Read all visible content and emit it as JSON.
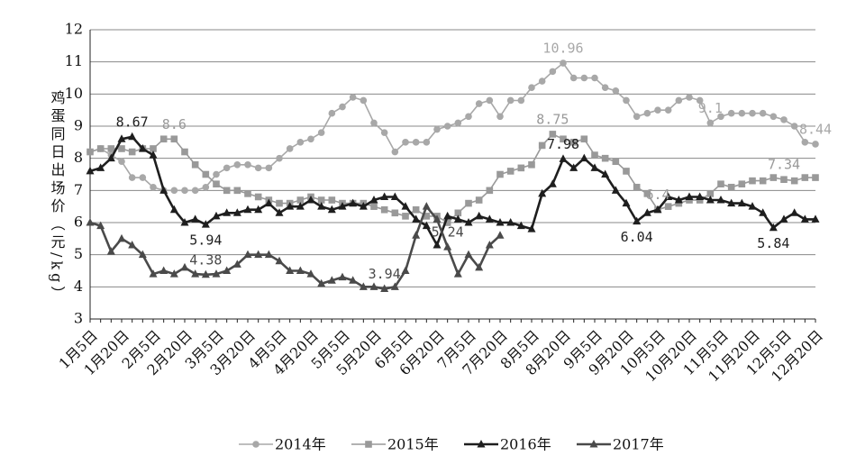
{
  "chart_data": {
    "type": "line",
    "y_label": "鸡蛋同日出场价（元/kg）",
    "categories": [
      "1月5日",
      null,
      null,
      "1月20日",
      null,
      null,
      "2月5日",
      null,
      null,
      "2月20日",
      null,
      null,
      "3月5日",
      null,
      null,
      "3月20日",
      null,
      null,
      "4月5日",
      null,
      null,
      "4月20日",
      null,
      null,
      "5月5日",
      null,
      null,
      "5月20日",
      null,
      null,
      "6月5日",
      null,
      null,
      "6月20日",
      null,
      null,
      "7月5日",
      null,
      null,
      "7月20日",
      null,
      null,
      "8月5日",
      null,
      null,
      "8月20日",
      null,
      null,
      "9月5日",
      null,
      null,
      "9月20日",
      null,
      null,
      "10月5日",
      null,
      null,
      "10月20日",
      null,
      null,
      "11月5日",
      null,
      null,
      "11月20日",
      null,
      null,
      "12月5日",
      null,
      null,
      "12月20日"
    ],
    "series": [
      {
        "name": "2014年",
        "color": "#a8a8a8",
        "marker": "circle",
        "values": [
          8.2,
          8.3,
          8.1,
          7.9,
          7.4,
          7.4,
          7.1,
          7.0,
          7.0,
          7.0,
          7.0,
          7.1,
          7.5,
          7.7,
          7.8,
          7.8,
          7.7,
          7.7,
          8.0,
          8.3,
          8.5,
          8.6,
          8.8,
          9.4,
          9.6,
          9.9,
          9.8,
          9.1,
          8.8,
          8.2,
          8.5,
          8.5,
          8.5,
          8.9,
          9.0,
          9.1,
          9.3,
          9.7,
          9.8,
          9.3,
          9.8,
          9.8,
          10.2,
          10.4,
          10.7,
          10.96,
          10.5,
          10.5,
          10.5,
          10.2,
          10.1,
          9.8,
          9.3,
          9.4,
          9.5,
          9.5,
          9.8,
          9.9,
          9.8,
          9.1,
          9.3,
          9.4,
          9.4,
          9.4,
          9.4,
          9.3,
          9.2,
          9.0,
          8.5,
          8.44
        ],
        "value_labels": [
          null,
          null,
          null,
          null,
          null,
          null,
          null,
          null,
          null,
          null,
          null,
          null,
          null,
          null,
          null,
          null,
          null,
          null,
          null,
          null,
          null,
          null,
          null,
          null,
          null,
          null,
          null,
          null,
          null,
          null,
          null,
          null,
          null,
          null,
          null,
          null,
          null,
          null,
          null,
          null,
          null,
          null,
          null,
          null,
          null,
          "10.96",
          null,
          null,
          null,
          null,
          null,
          null,
          null,
          null,
          null,
          null,
          null,
          null,
          null,
          "9.1",
          null,
          null,
          null,
          null,
          null,
          null,
          null,
          null,
          null,
          "8.44"
        ]
      },
      {
        "name": "2015年",
        "color": "#999999",
        "marker": "square",
        "values": [
          8.2,
          8.3,
          8.3,
          8.3,
          8.2,
          8.3,
          8.3,
          8.6,
          8.6,
          8.2,
          7.8,
          7.5,
          7.2,
          7.0,
          7.0,
          6.9,
          6.8,
          6.7,
          6.6,
          6.6,
          6.7,
          6.8,
          6.7,
          6.7,
          6.6,
          6.6,
          6.6,
          6.5,
          6.4,
          6.3,
          6.2,
          6.4,
          6.2,
          6.2,
          6.0,
          6.3,
          6.6,
          6.7,
          7.0,
          7.5,
          7.6,
          7.7,
          7.8,
          8.4,
          8.75,
          8.6,
          8.5,
          8.6,
          8.1,
          8.0,
          7.9,
          7.6,
          7.1,
          6.9,
          6.4,
          6.5,
          6.6,
          6.7,
          6.7,
          6.9,
          7.2,
          7.1,
          7.2,
          7.3,
          7.3,
          7.4,
          7.34,
          7.3,
          7.4,
          7.4
        ],
        "value_labels": [
          null,
          null,
          null,
          null,
          null,
          null,
          null,
          null,
          "8.6",
          null,
          null,
          null,
          null,
          null,
          null,
          null,
          null,
          null,
          null,
          null,
          null,
          null,
          null,
          null,
          null,
          null,
          null,
          null,
          null,
          null,
          null,
          null,
          null,
          null,
          null,
          null,
          null,
          null,
          null,
          null,
          null,
          null,
          null,
          null,
          "8.75",
          null,
          null,
          null,
          null,
          null,
          null,
          null,
          null,
          null,
          "6.4",
          null,
          null,
          null,
          null,
          null,
          null,
          null,
          null,
          null,
          null,
          null,
          "7.34",
          null,
          null,
          null
        ]
      },
      {
        "name": "2016年",
        "color": "#1e1e1e",
        "marker": "triangle",
        "values": [
          7.6,
          7.7,
          8.0,
          8.6,
          8.67,
          8.3,
          8.1,
          7.0,
          6.4,
          6.0,
          6.1,
          5.94,
          6.2,
          6.3,
          6.3,
          6.4,
          6.4,
          6.6,
          6.3,
          6.5,
          6.5,
          6.7,
          6.5,
          6.4,
          6.5,
          6.6,
          6.5,
          6.7,
          6.8,
          6.8,
          6.5,
          6.1,
          5.9,
          5.3,
          6.2,
          6.1,
          6.0,
          6.2,
          6.1,
          6.0,
          6.0,
          5.9,
          5.8,
          6.9,
          7.2,
          7.98,
          7.7,
          8.0,
          7.7,
          7.5,
          7.0,
          6.6,
          6.04,
          6.3,
          6.4,
          6.8,
          6.7,
          6.8,
          6.8,
          6.7,
          6.7,
          6.6,
          6.6,
          6.5,
          6.3,
          5.84,
          6.1,
          6.3,
          6.1,
          6.1
        ],
        "value_labels": [
          null,
          null,
          null,
          null,
          "8.67",
          null,
          null,
          null,
          null,
          null,
          null,
          "5.94",
          null,
          null,
          null,
          null,
          null,
          null,
          null,
          null,
          null,
          null,
          null,
          null,
          null,
          null,
          null,
          null,
          null,
          null,
          null,
          null,
          null,
          null,
          null,
          null,
          null,
          null,
          null,
          null,
          null,
          null,
          null,
          null,
          null,
          "7.98",
          null,
          null,
          null,
          null,
          null,
          null,
          "6.04",
          null,
          null,
          null,
          null,
          null,
          null,
          null,
          null,
          null,
          null,
          null,
          null,
          "5.84",
          null,
          null,
          null,
          null
        ]
      },
      {
        "name": "2017年",
        "color": "#4a4a4a",
        "marker": "triangle",
        "values": [
          6.0,
          5.9,
          5.1,
          5.5,
          5.3,
          5.0,
          4.4,
          4.5,
          4.4,
          4.6,
          4.4,
          4.38,
          4.4,
          4.5,
          4.7,
          5.0,
          5.0,
          5.0,
          4.8,
          4.5,
          4.5,
          4.4,
          4.1,
          4.2,
          4.3,
          4.2,
          4.0,
          4.0,
          3.94,
          4.0,
          4.5,
          5.6,
          6.5,
          6.1,
          5.24,
          4.4,
          5.0,
          4.6,
          5.3,
          5.6,
          null,
          null,
          null,
          null,
          null,
          null,
          null,
          null,
          null,
          null,
          null,
          null,
          null,
          null,
          null,
          null,
          null,
          null,
          null,
          null,
          null,
          null,
          null,
          null,
          null,
          null,
          null,
          null,
          null,
          null
        ],
        "value_labels": [
          null,
          null,
          null,
          null,
          null,
          null,
          null,
          null,
          null,
          null,
          null,
          "4.38",
          null,
          null,
          null,
          null,
          null,
          null,
          null,
          null,
          null,
          null,
          null,
          null,
          null,
          null,
          null,
          null,
          "3.94",
          null,
          null,
          null,
          null,
          null,
          "5.24",
          null,
          null,
          null,
          null,
          null,
          null,
          null,
          null,
          null,
          null,
          null,
          null,
          null,
          null,
          null,
          null,
          null,
          null,
          null,
          null,
          null,
          null,
          null,
          null,
          null,
          null,
          null,
          null,
          null,
          null,
          null,
          null,
          null,
          null,
          null
        ]
      }
    ],
    "ylim": [
      3,
      12
    ],
    "yticks": [
      3,
      4,
      5,
      6,
      7,
      8,
      9,
      10,
      11,
      12
    ],
    "grid": true,
    "legend": "bottom"
  }
}
